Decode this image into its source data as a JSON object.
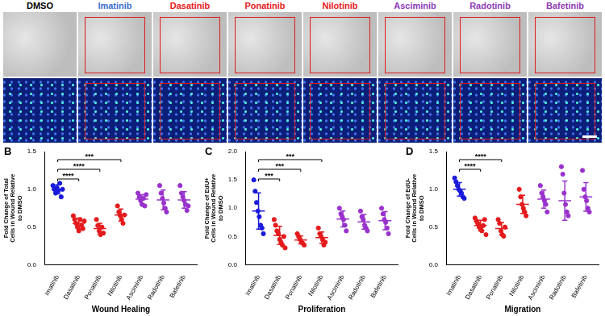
{
  "images": {
    "panels": [
      {
        "label": "DMSO",
        "color": "#000000"
      },
      {
        "label": "Imatinib",
        "color": "#3a6fd0"
      },
      {
        "label": "Dasatinib",
        "color": "#e41a1c"
      },
      {
        "label": "Ponatinib",
        "color": "#e41a1c"
      },
      {
        "label": "Nilotinib",
        "color": "#e41a1c"
      },
      {
        "label": "Asciminib",
        "color": "#8e3bb8"
      },
      {
        "label": "Radotinib",
        "color": "#8e3bb8"
      },
      {
        "label": "Bafetinib",
        "color": "#8e3bb8"
      }
    ]
  },
  "chart_data": [
    {
      "type": "scatter",
      "panel": "B",
      "x_label": "Wound Healing",
      "y_label": "Fold Change of Total Cells in Wound Relative to DMSO",
      "categories": [
        "Imatinib",
        "Dasatinib",
        "Ponatinib",
        "Nilotinib",
        "Asciminib",
        "Radotinib",
        "Bafetinib"
      ],
      "colors": [
        "#1a1adb",
        "#e41a1c",
        "#e41a1c",
        "#e41a1c",
        "#9932cc",
        "#9932cc",
        "#9932cc"
      ],
      "values": [
        [
          1.05,
          1.0,
          0.95,
          1.02,
          0.98,
          1.08,
          0.9,
          1.0
        ],
        [
          0.65,
          0.6,
          0.55,
          0.5,
          0.45,
          0.6,
          0.52,
          0.48,
          0.58
        ],
        [
          0.6,
          0.52,
          0.45,
          0.4,
          0.5,
          0.42
        ],
        [
          0.78,
          0.7,
          0.65,
          0.6,
          0.55,
          0.66
        ],
        [
          0.95,
          0.9,
          0.85,
          0.8,
          0.88,
          0.78,
          0.93
        ],
        [
          1.05,
          0.95,
          0.88,
          0.82,
          0.75,
          0.7
        ],
        [
          1.05,
          0.95,
          0.9,
          0.85,
          0.8,
          0.72,
          0.78
        ]
      ],
      "mean": [
        1.0,
        0.55,
        0.48,
        0.66,
        0.87,
        0.86,
        0.86
      ],
      "error": [
        0.06,
        0.07,
        0.07,
        0.08,
        0.06,
        0.13,
        0.11
      ],
      "ylim": [
        0,
        1.5
      ],
      "yticks": [
        {
          "value": 0,
          "label": "0.0"
        },
        0.5,
        {
          "value": 1,
          "label": "1.0"
        },
        1.5
      ],
      "grid": false,
      "comparisons": [
        {
          "from": "Imatinib",
          "to": "Dasatinib",
          "label": "****"
        },
        {
          "from": "Imatinib",
          "to": "Ponatinib",
          "label": "****"
        },
        {
          "from": "Imatinib",
          "to": "Nilotinib",
          "label": "***"
        }
      ]
    },
    {
      "type": "scatter",
      "panel": "C",
      "x_label": "Proliferation",
      "y_label": "Fold Change of EdU+ Cells in Wound Relative to DMSO",
      "categories": [
        "Imatinib",
        "Dasatinib",
        "Ponatinib",
        "Nilotinib",
        "Asciminib",
        "Radotinib",
        "Bafetinib"
      ],
      "colors": [
        "#1a1adb",
        "#e41a1c",
        "#e41a1c",
        "#e41a1c",
        "#9932cc",
        "#9932cc",
        "#9932cc"
      ],
      "values": [
        [
          1.5,
          1.3,
          1.1,
          0.95,
          0.85,
          0.7,
          0.65,
          0.55
        ],
        [
          0.8,
          0.7,
          0.6,
          0.55,
          0.45,
          0.4,
          0.35,
          0.5,
          0.3
        ],
        [
          0.55,
          0.5,
          0.45,
          0.4,
          0.38,
          0.35
        ],
        [
          0.65,
          0.55,
          0.5,
          0.45,
          0.35,
          0.4
        ],
        [
          1.0,
          0.9,
          0.85,
          0.8,
          0.7,
          0.6
        ],
        [
          0.95,
          0.85,
          0.8,
          0.7,
          0.65,
          0.6
        ],
        [
          1.0,
          0.9,
          0.8,
          0.75,
          0.65,
          0.55
        ]
      ],
      "mean": [
        0.95,
        0.52,
        0.44,
        0.48,
        0.81,
        0.76,
        0.78
      ],
      "error": [
        0.32,
        0.16,
        0.07,
        0.1,
        0.14,
        0.13,
        0.16
      ],
      "ylim": [
        0,
        2
      ],
      "yticks": [
        {
          "value": 0,
          "label": "0.0"
        },
        0.5,
        {
          "value": 1,
          "label": "1.0"
        },
        1.5,
        {
          "value": 2,
          "label": "2.0"
        }
      ],
      "grid": false,
      "comparisons": [
        {
          "from": "Imatinib",
          "to": "Dasatinib",
          "label": "***"
        },
        {
          "from": "Imatinib",
          "to": "Ponatinib",
          "label": "***"
        },
        {
          "from": "Imatinib",
          "to": "Nilotinib",
          "label": "***"
        }
      ]
    },
    {
      "type": "scatter",
      "panel": "D",
      "x_label": "Migration",
      "y_label": "Fold Change of EdU- Cells in Wound Relative to DMSO",
      "categories": [
        "Imatinib",
        "Dasatinib",
        "Ponatinib",
        "Nilotinib",
        "Asciminib",
        "Radotinib",
        "Bafetinib"
      ],
      "colors": [
        "#1a1adb",
        "#e41a1c",
        "#e41a1c",
        "#e41a1c",
        "#9932cc",
        "#9932cc",
        "#9932cc"
      ],
      "values": [
        [
          1.15,
          1.1,
          1.05,
          1.0,
          0.98,
          0.95,
          0.9,
          0.88
        ],
        [
          0.62,
          0.58,
          0.55,
          0.5,
          0.48,
          0.45,
          0.52,
          0.6,
          0.4
        ],
        [
          0.6,
          0.55,
          0.45,
          0.4,
          0.38,
          0.5
        ],
        [
          1.0,
          0.9,
          0.8,
          0.75,
          0.7,
          0.65
        ],
        [
          1.05,
          0.95,
          0.9,
          0.85,
          0.8,
          0.7
        ],
        [
          1.3,
          1.2,
          0.95,
          0.8,
          0.7,
          0.65
        ],
        [
          1.25,
          1.0,
          0.9,
          0.85,
          0.75,
          0.7
        ]
      ],
      "mean": [
        1.0,
        0.52,
        0.48,
        0.8,
        0.87,
        0.85,
        0.9
      ],
      "error": [
        0.09,
        0.07,
        0.08,
        0.12,
        0.12,
        0.26,
        0.19
      ],
      "ylim": [
        0,
        1.5
      ],
      "yticks": [
        {
          "value": 0,
          "label": "0.0"
        },
        0.5,
        {
          "value": 1,
          "label": "1.0"
        },
        1.5
      ],
      "grid": false,
      "comparisons": [
        {
          "from": "Imatinib",
          "to": "Dasatinib",
          "label": "****"
        },
        {
          "from": "Imatinib",
          "to": "Ponatinib",
          "label": "****"
        }
      ]
    }
  ]
}
